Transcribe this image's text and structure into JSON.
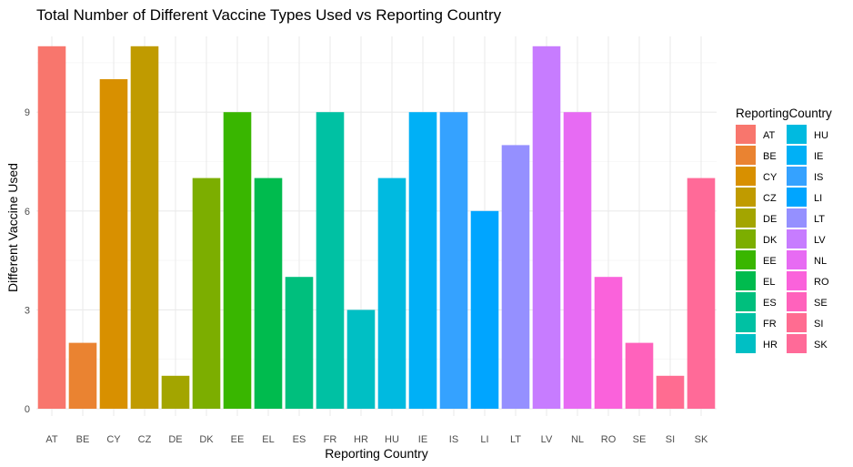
{
  "chart_data": {
    "type": "bar",
    "title": "Total Number of Different Vaccine Types Used vs Reporting Country",
    "xlabel": "Reporting Country",
    "ylabel": "Different Vaccine Used",
    "categories": [
      "AT",
      "BE",
      "CY",
      "CZ",
      "DE",
      "DK",
      "EE",
      "EL",
      "ES",
      "FR",
      "HR",
      "HU",
      "IE",
      "IS",
      "LI",
      "LT",
      "LV",
      "NL",
      "RO",
      "SE",
      "SI",
      "SK"
    ],
    "values": [
      11,
      2,
      10,
      11,
      1,
      7,
      9,
      7,
      4,
      9,
      3,
      7,
      9,
      9,
      6,
      8,
      11,
      9,
      4,
      2,
      1,
      7
    ],
    "colors": [
      "#F8766D",
      "#EA8331",
      "#D89000",
      "#C09B00",
      "#A3A500",
      "#7CAE00",
      "#39B600",
      "#00BB4E",
      "#00BF7D",
      "#00C1A3",
      "#00BFC4",
      "#00BAE0",
      "#00B0F6",
      "#35A2FF",
      "#00A5FF",
      "#9590FF",
      "#C77CFF",
      "#E76BF3",
      "#FA62DB",
      "#FF62BC",
      "#FF6C91",
      "#FF6A98"
    ],
    "ylim": [
      0,
      11
    ],
    "yticks": [
      0,
      3,
      6,
      9
    ],
    "grid": true,
    "legend": {
      "title": "ReportingCountry",
      "position": "right",
      "columns": 2
    }
  }
}
